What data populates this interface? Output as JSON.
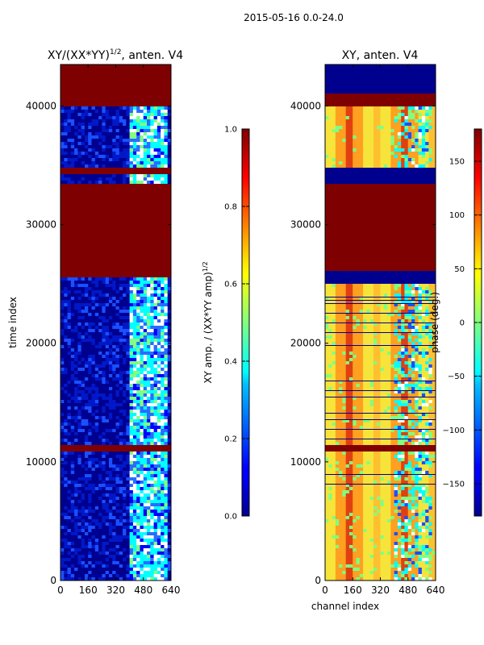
{
  "figure": {
    "suptitle": "2015-05-16 0.0-24.0"
  },
  "chart_data": [
    {
      "type": "heatmap",
      "title_main": "XY/(XX*YY)",
      "title_sup": "1/2",
      "title_rest": ", anten. V4",
      "ylabel": "time index",
      "xlabel": "",
      "x_ticks": [
        0,
        160,
        320,
        480,
        640
      ],
      "y_ticks": [
        0,
        10000,
        20000,
        30000,
        40000
      ],
      "xlim": [
        0,
        640
      ],
      "ylim": [
        0,
        43500
      ],
      "colormap": "jet",
      "colorbar": {
        "label_main": "XY amp. / (XX*YY amp)",
        "label_sup": "1/2",
        "ticks": [
          0.0,
          0.2,
          0.4,
          0.6,
          0.8,
          1.0
        ],
        "tick_labels": [
          "0.0",
          "0.2",
          "0.4",
          "0.6",
          "0.8",
          "1.0"
        ],
        "range": [
          0.0,
          1.0
        ]
      }
    },
    {
      "type": "heatmap",
      "title_main": "XY, anten. V4",
      "title_sup": "",
      "title_rest": "",
      "ylabel": "",
      "xlabel": "channel index",
      "x_ticks": [
        0,
        160,
        320,
        480,
        640
      ],
      "y_ticks": [
        0,
        10000,
        20000,
        30000,
        40000
      ],
      "xlim": [
        0,
        640
      ],
      "ylim": [
        0,
        43500
      ],
      "colormap": "jet",
      "colorbar": {
        "label_main": "phase (deg.)",
        "label_sup": "",
        "ticks": [
          -150,
          -100,
          -50,
          0,
          50,
          100,
          150
        ],
        "tick_labels": [
          "−150",
          "−100",
          "−50",
          "0",
          "50",
          "100",
          "150"
        ],
        "range": [
          -180,
          180
        ]
      }
    }
  ],
  "colors": {
    "flagged": "#7f0000",
    "background_low": "#00008f",
    "band_low": "#1030d0",
    "mid_low": "#2a6cff",
    "phase_yellow": "#f6e43a",
    "phase_orange": "#ffa020",
    "phase_red": "#e04010",
    "phase_green": "#8ff070"
  },
  "layout_rows": {
    "flag_ranges": [
      [
        40000,
        43500
      ],
      [
        25500,
        33400
      ],
      [
        11000,
        11300
      ],
      [
        34200,
        34800
      ]
    ],
    "phase_blue_ranges": [
      [
        41000,
        43500
      ],
      [
        33500,
        34800
      ],
      [
        25000,
        26000
      ]
    ]
  }
}
